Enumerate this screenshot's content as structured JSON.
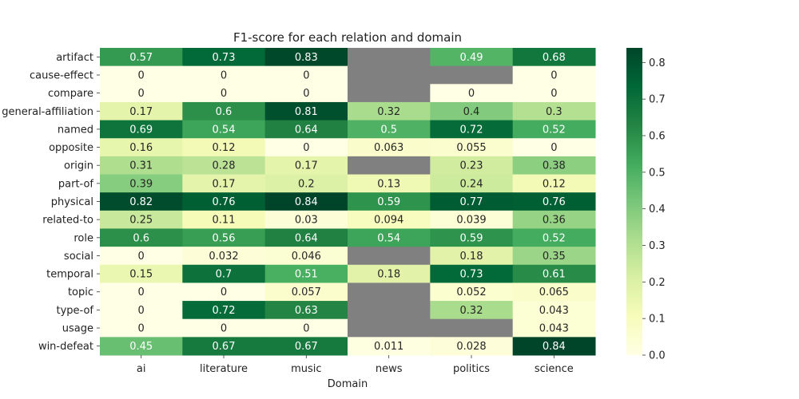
{
  "chart_data": {
    "type": "heatmap",
    "title": "F1-score for each relation and domain",
    "xlabel": "Domain",
    "ylabel": "",
    "x_categories": [
      "ai",
      "literature",
      "music",
      "news",
      "politics",
      "science"
    ],
    "y_categories": [
      "artifact",
      "cause-effect",
      "compare",
      "general-affiliation",
      "named",
      "opposite",
      "origin",
      "part-of",
      "physical",
      "related-to",
      "role",
      "social",
      "temporal",
      "topic",
      "type-of",
      "usage",
      "win-defeat"
    ],
    "values": [
      [
        0.57,
        0.73,
        0.83,
        null,
        0.49,
        0.68
      ],
      [
        0,
        0,
        0,
        null,
        null,
        0
      ],
      [
        0,
        0,
        0,
        null,
        0,
        0
      ],
      [
        0.17,
        0.6,
        0.81,
        0.32,
        0.4,
        0.3
      ],
      [
        0.69,
        0.54,
        0.64,
        0.5,
        0.72,
        0.52
      ],
      [
        0.16,
        0.12,
        0,
        0.063,
        0.055,
        0
      ],
      [
        0.31,
        0.28,
        0.17,
        null,
        0.23,
        0.38
      ],
      [
        0.39,
        0.17,
        0.2,
        0.13,
        0.24,
        0.12
      ],
      [
        0.82,
        0.76,
        0.84,
        0.59,
        0.77,
        0.76
      ],
      [
        0.25,
        0.11,
        0.03,
        0.094,
        0.039,
        0.36
      ],
      [
        0.6,
        0.56,
        0.64,
        0.54,
        0.59,
        0.52
      ],
      [
        0,
        0.032,
        0.046,
        null,
        0.18,
        0.35
      ],
      [
        0.15,
        0.7,
        0.51,
        0.18,
        0.73,
        0.61
      ],
      [
        0,
        0,
        0.057,
        null,
        0.052,
        0.065
      ],
      [
        0,
        0.72,
        0.63,
        null,
        0.32,
        0.043
      ],
      [
        0,
        0,
        0,
        null,
        null,
        0.043
      ],
      [
        0.45,
        0.67,
        0.67,
        0.011,
        0.028,
        0.84
      ]
    ],
    "value_labels": [
      [
        "0.57",
        "0.73",
        "0.83",
        "",
        "0.49",
        "0.68"
      ],
      [
        "0",
        "0",
        "0",
        "",
        "",
        "0"
      ],
      [
        "0",
        "0",
        "0",
        "",
        "0",
        "0"
      ],
      [
        "0.17",
        "0.6",
        "0.81",
        "0.32",
        "0.4",
        "0.3"
      ],
      [
        "0.69",
        "0.54",
        "0.64",
        "0.5",
        "0.72",
        "0.52"
      ],
      [
        "0.16",
        "0.12",
        "0",
        "0.063",
        "0.055",
        "0"
      ],
      [
        "0.31",
        "0.28",
        "0.17",
        "",
        "0.23",
        "0.38"
      ],
      [
        "0.39",
        "0.17",
        "0.2",
        "0.13",
        "0.24",
        "0.12"
      ],
      [
        "0.82",
        "0.76",
        "0.84",
        "0.59",
        "0.77",
        "0.76"
      ],
      [
        "0.25",
        "0.11",
        "0.03",
        "0.094",
        "0.039",
        "0.36"
      ],
      [
        "0.6",
        "0.56",
        "0.64",
        "0.54",
        "0.59",
        "0.52"
      ],
      [
        "0",
        "0.032",
        "0.046",
        "",
        "0.18",
        "0.35"
      ],
      [
        "0.15",
        "0.7",
        "0.51",
        "0.18",
        "0.73",
        "0.61"
      ],
      [
        "0",
        "0",
        "0.057",
        "",
        "0.052",
        "0.065"
      ],
      [
        "0",
        "0.72",
        "0.63",
        "",
        "0.32",
        "0.043"
      ],
      [
        "0",
        "0",
        "0",
        "",
        "",
        "0.043"
      ],
      [
        "0.45",
        "0.67",
        "0.67",
        "0.011",
        "0.028",
        "0.84"
      ]
    ],
    "missing_color": "#808080",
    "colormap": "YlGn",
    "vmin": 0,
    "vmax": 0.84,
    "colorbar_ticks": [
      0.0,
      0.1,
      0.2,
      0.3,
      0.4,
      0.5,
      0.6,
      0.7,
      0.8
    ],
    "colorbar_tick_labels": [
      "0.0",
      "0.1",
      "0.2",
      "0.3",
      "0.4",
      "0.5",
      "0.6",
      "0.7",
      "0.8"
    ],
    "grid": false,
    "legend": "colorbar-right"
  }
}
